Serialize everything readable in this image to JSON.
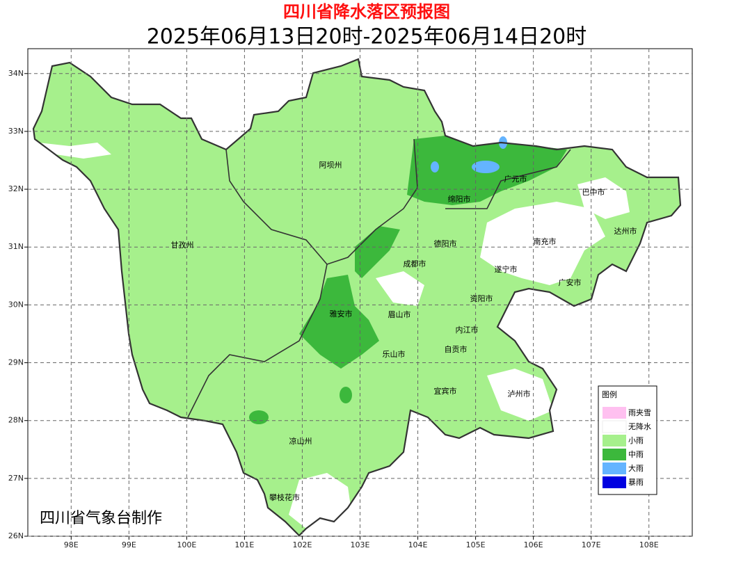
{
  "title": "四川省降水落区预报图",
  "subtitle": "2025年06月13日20时-2025年06月14日20时",
  "credit": "四川省气象台制作",
  "axes": {
    "xlim": [
      97.25,
      108.75
    ],
    "ylim": [
      26,
      34.43
    ],
    "xticks": [
      {
        "value": 98,
        "label": "98E"
      },
      {
        "value": 99,
        "label": "99E"
      },
      {
        "value": 100,
        "label": "100E"
      },
      {
        "value": 101,
        "label": "101E"
      },
      {
        "value": 102,
        "label": "102E"
      },
      {
        "value": 103,
        "label": "103E"
      },
      {
        "value": 104,
        "label": "104E"
      },
      {
        "value": 105,
        "label": "105E"
      },
      {
        "value": 106,
        "label": "106E"
      },
      {
        "value": 107,
        "label": "107E"
      },
      {
        "value": 108,
        "label": "108E"
      }
    ],
    "yticks": [
      {
        "value": 26,
        "label": "26N"
      },
      {
        "value": 27,
        "label": "27N"
      },
      {
        "value": 28,
        "label": "28N"
      },
      {
        "value": 29,
        "label": "29N"
      },
      {
        "value": 30,
        "label": "30N"
      },
      {
        "value": 31,
        "label": "31N"
      },
      {
        "value": 32,
        "label": "32N"
      },
      {
        "value": 33,
        "label": "33N"
      },
      {
        "value": 34,
        "label": "34N"
      }
    ],
    "grid": true
  },
  "cities": [
    "阿坝州",
    "甘孜州",
    "广元市",
    "巴中市",
    "绵阳市",
    "德阳市",
    "南充市",
    "达州市",
    "成都市",
    "遂宁市",
    "广安市",
    "资阳市",
    "雅安市",
    "眉山市",
    "内江市",
    "自贡市",
    "乐山市",
    "宜宾市",
    "泸州市",
    "凉山州",
    "攀枝花市"
  ],
  "legend": {
    "title": "图例",
    "items": [
      {
        "label": "雨夹雪",
        "color": "#ffc0f0"
      },
      {
        "label": "无降水",
        "color": "#ffffff"
      },
      {
        "label": "小雨",
        "color": "#a6f08c"
      },
      {
        "label": "中雨",
        "color": "#3cb83c"
      },
      {
        "label": "大雨",
        "color": "#64b4ff"
      },
      {
        "label": "暴雨",
        "color": "#0000e0"
      }
    ]
  }
}
